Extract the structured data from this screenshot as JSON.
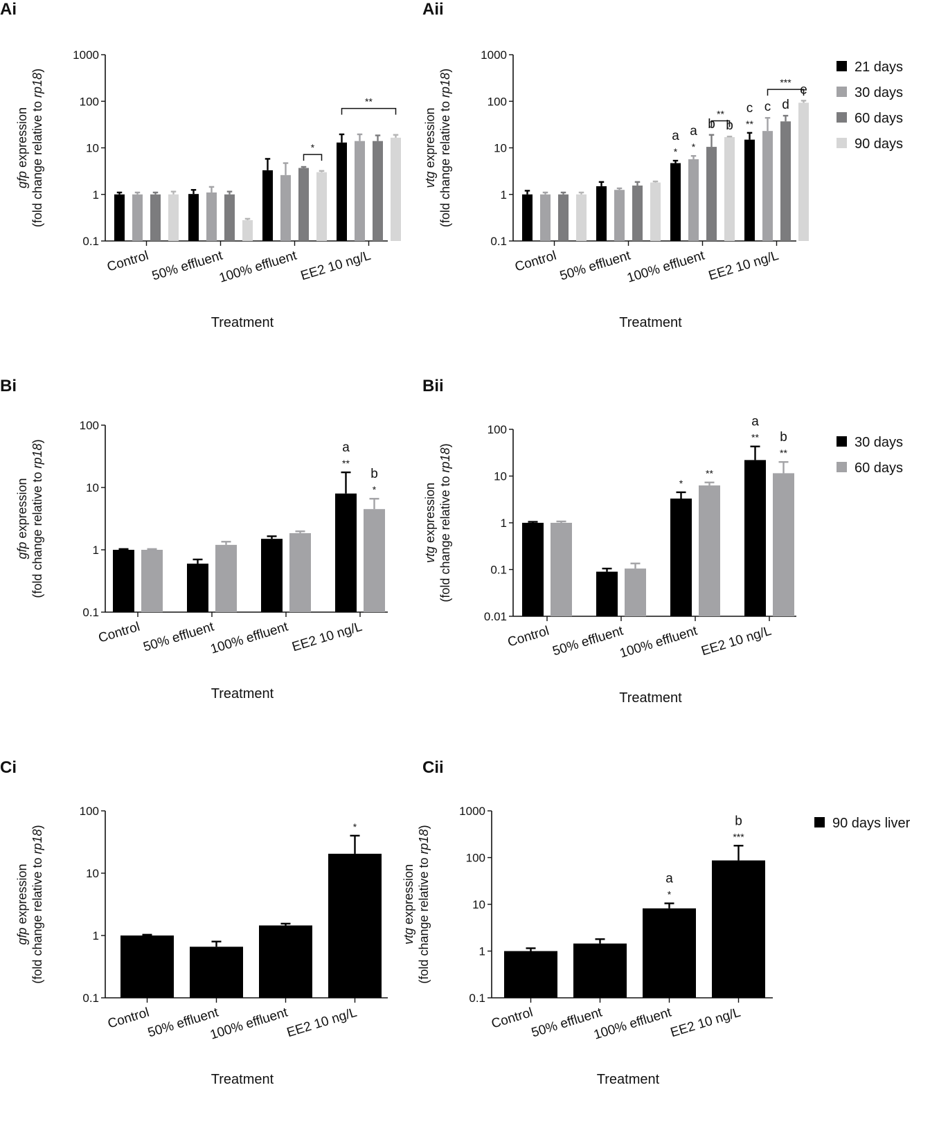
{
  "chart_data": [
    {
      "id": "Ai",
      "panel": "Ai",
      "type": "bar",
      "scale": "log",
      "categories": [
        "Control",
        "50% effluent",
        "100% effluent",
        "EE2 10 ng/L"
      ],
      "yticks": [
        "0.1",
        "1",
        "10",
        "100",
        "1000"
      ],
      "ylim": [
        0.1,
        1000
      ],
      "ylabel_gene": "gfp",
      "ylabel_rest": " expression",
      "ylabel_line2_pre": "(fold change relative to ",
      "ylabel_line2_gene": "rp18",
      "ylabel_line2_post": ")",
      "xlabel": "Treatment",
      "series": [
        {
          "name": "21 days",
          "color": "#000000",
          "values": [
            1.0,
            1.02,
            3.3,
            13.0
          ],
          "err": [
            1.1,
            1.25,
            5.8,
            19.5
          ]
        },
        {
          "name": "30 days",
          "color": "#a3a3a6",
          "values": [
            1.0,
            1.1,
            2.6,
            14.0
          ],
          "err": [
            1.1,
            1.45,
            4.7,
            19.5
          ]
        },
        {
          "name": "60 days",
          "color": "#7c7c7e",
          "values": [
            1.0,
            1.0,
            3.7,
            14.0
          ],
          "err": [
            1.1,
            1.15,
            3.9,
            18.5
          ]
        },
        {
          "name": "90 days",
          "color": "#d6d6d6",
          "values": [
            1.0,
            0.28,
            3.0,
            16.5
          ],
          "err": [
            1.15,
            0.3,
            3.2,
            19.0
          ]
        }
      ],
      "stars": [],
      "letters": [],
      "brackets": [
        {
          "cat": 2,
          "s1": 2,
          "s2": 3,
          "level": 7.2,
          "label": "*"
        },
        {
          "cat": 3,
          "s1": 0,
          "s2": 3,
          "level": 70,
          "label": "**"
        }
      ],
      "legend": false
    },
    {
      "id": "Aii",
      "panel": "Aii",
      "type": "bar",
      "scale": "log",
      "categories": [
        "Control",
        "50% effluent",
        "100% effluent",
        "EE2 10 ng/L"
      ],
      "yticks": [
        "0.1",
        "1",
        "10",
        "100",
        "1000"
      ],
      "ylim": [
        0.1,
        1000
      ],
      "ylabel_gene": "vtg",
      "ylabel_rest": " expression",
      "ylabel_line2_pre": "(fold change relative to ",
      "ylabel_line2_gene": "rp18",
      "ylabel_line2_post": ")",
      "xlabel": "Treatment",
      "series": [
        {
          "name": "21 days",
          "color": "#000000",
          "values": [
            1.0,
            1.5,
            4.7,
            15.0
          ],
          "err": [
            1.2,
            1.85,
            5.3,
            21.0
          ]
        },
        {
          "name": "30 days",
          "color": "#a3a3a6",
          "values": [
            1.0,
            1.25,
            5.7,
            23.0
          ],
          "err": [
            1.1,
            1.35,
            6.7,
            44.0
          ]
        },
        {
          "name": "60 days",
          "color": "#7c7c7e",
          "values": [
            1.0,
            1.55,
            10.5,
            37.0
          ],
          "err": [
            1.1,
            1.85,
            19.0,
            49.0
          ]
        },
        {
          "name": "90 days",
          "color": "#d6d6d6",
          "values": [
            1.0,
            1.8,
            17.0,
            93.0
          ],
          "err": [
            1.1,
            1.9,
            17.5,
            103.0
          ]
        }
      ],
      "stars": [
        {
          "cat": 2,
          "s": 0,
          "label": "*"
        },
        {
          "cat": 2,
          "s": 1,
          "label": "*"
        },
        {
          "cat": 3,
          "s": 0,
          "label": "**"
        }
      ],
      "letters": [
        {
          "cat": 2,
          "s": 0,
          "label": "a"
        },
        {
          "cat": 2,
          "s": 1,
          "label": "a"
        },
        {
          "cat": 2,
          "s": 2,
          "label": "b"
        },
        {
          "cat": 2,
          "s": 3,
          "label": "b"
        },
        {
          "cat": 3,
          "s": 0,
          "label": "c"
        },
        {
          "cat": 3,
          "s": 1,
          "label": "c"
        },
        {
          "cat": 3,
          "s": 2,
          "label": "d"
        },
        {
          "cat": 3,
          "s": 3,
          "label": "e"
        }
      ],
      "brackets": [
        {
          "cat": 2,
          "s1": 2,
          "s2": 3,
          "level": 38,
          "label": "**"
        },
        {
          "cat": 3,
          "s1": 1,
          "s2": 3,
          "level": 180,
          "label": "***"
        }
      ],
      "legend": true
    },
    {
      "id": "Bi",
      "panel": "Bi",
      "type": "bar",
      "scale": "log",
      "categories": [
        "Control",
        "50% effluent",
        "100% effluent",
        "EE2 10 ng/L"
      ],
      "yticks": [
        "0.1",
        "1",
        "10",
        "100"
      ],
      "ylim": [
        0.1,
        100
      ],
      "ylabel_gene": "gfp",
      "ylabel_rest": " expression",
      "ylabel_line2_pre": "(fold change relative to ",
      "ylabel_line2_gene": "rp18",
      "ylabel_line2_post": ")",
      "xlabel": "Treatment",
      "series": [
        {
          "name": "30 days",
          "color": "#000000",
          "values": [
            1.0,
            0.6,
            1.5,
            8.0
          ],
          "err": [
            1.03,
            0.7,
            1.65,
            17.5
          ]
        },
        {
          "name": "60 days",
          "color": "#a3a3a6",
          "values": [
            1.0,
            1.2,
            1.85,
            4.5
          ],
          "err": [
            1.03,
            1.35,
            1.98,
            6.6
          ]
        }
      ],
      "stars": [
        {
          "cat": 3,
          "s": 0,
          "label": "**"
        },
        {
          "cat": 3,
          "s": 1,
          "label": "*"
        }
      ],
      "letters": [
        {
          "cat": 3,
          "s": 0,
          "label": "a"
        },
        {
          "cat": 3,
          "s": 1,
          "label": "b"
        }
      ],
      "brackets": [],
      "legend": false
    },
    {
      "id": "Bii",
      "panel": "Bii",
      "type": "bar",
      "scale": "log",
      "categories": [
        "Control",
        "50% effluent",
        "100% effluent",
        "EE2 10 ng/L"
      ],
      "yticks": [
        "0.01",
        "0.1",
        "1",
        "10",
        "100"
      ],
      "ylim": [
        0.01,
        100
      ],
      "ylabel_gene": "vtg",
      "ylabel_rest": " expression",
      "ylabel_line2_pre": "(fold change relative to ",
      "ylabel_line2_gene": "rp18",
      "ylabel_line2_post": ")",
      "xlabel": "Treatment",
      "series": [
        {
          "name": "30 days",
          "color": "#000000",
          "values": [
            1.0,
            0.09,
            3.3,
            22.0
          ],
          "err": [
            1.05,
            0.105,
            4.5,
            43.0
          ]
        },
        {
          "name": "60 days",
          "color": "#a3a3a6",
          "values": [
            1.0,
            0.105,
            6.3,
            11.5
          ],
          "err": [
            1.07,
            0.135,
            7.3,
            20.0
          ]
        }
      ],
      "stars": [
        {
          "cat": 2,
          "s": 0,
          "label": "*"
        },
        {
          "cat": 2,
          "s": 1,
          "label": "**"
        },
        {
          "cat": 3,
          "s": 0,
          "label": "**"
        },
        {
          "cat": 3,
          "s": 1,
          "label": "**"
        }
      ],
      "letters": [
        {
          "cat": 3,
          "s": 0,
          "label": "a"
        },
        {
          "cat": 3,
          "s": 1,
          "label": "b"
        }
      ],
      "brackets": [],
      "legend": true
    },
    {
      "id": "Ci",
      "panel": "Ci",
      "type": "bar",
      "scale": "log",
      "categories": [
        "Control",
        "50% effluent",
        "100% effluent",
        "EE2 10 ng/L"
      ],
      "yticks": [
        "0.1",
        "1",
        "10",
        "100"
      ],
      "ylim": [
        0.1,
        100
      ],
      "ylabel_gene": "gfp",
      "ylabel_rest": " expression",
      "ylabel_line2_pre": "(fold change relative to ",
      "ylabel_line2_gene": "rp18",
      "ylabel_line2_post": ")",
      "xlabel": "Treatment",
      "series": [
        {
          "name": "90 days liver",
          "color": "#000000",
          "values": [
            1.0,
            0.66,
            1.45,
            20.5
          ],
          "err": [
            1.03,
            0.8,
            1.55,
            40.0
          ]
        }
      ],
      "stars": [
        {
          "cat": 3,
          "s": 0,
          "label": "*"
        }
      ],
      "letters": [],
      "brackets": [],
      "legend": false
    },
    {
      "id": "Cii",
      "panel": "Cii",
      "type": "bar",
      "scale": "log",
      "categories": [
        "Control",
        "50% effluent",
        "100% effluent",
        "EE2 10 ng/L"
      ],
      "yticks": [
        "0.1",
        "1",
        "10",
        "100",
        "1000"
      ],
      "ylim": [
        0.1,
        1000
      ],
      "ylabel_gene": "vtg",
      "ylabel_rest": " expression",
      "ylabel_line2_pre": "(fold change relative to ",
      "ylabel_line2_gene": "rp18",
      "ylabel_line2_post": ")",
      "xlabel": "Treatment",
      "series": [
        {
          "name": "90 days liver",
          "color": "#000000",
          "values": [
            1.0,
            1.45,
            8.2,
            87.0
          ],
          "err": [
            1.15,
            1.8,
            10.5,
            180.0
          ]
        }
      ],
      "stars": [
        {
          "cat": 2,
          "s": 0,
          "label": "*"
        },
        {
          "cat": 3,
          "s": 0,
          "label": "***"
        }
      ],
      "letters": [
        {
          "cat": 2,
          "s": 0,
          "label": "a"
        },
        {
          "cat": 3,
          "s": 0,
          "label": "b"
        }
      ],
      "brackets": [],
      "legend": true
    }
  ]
}
